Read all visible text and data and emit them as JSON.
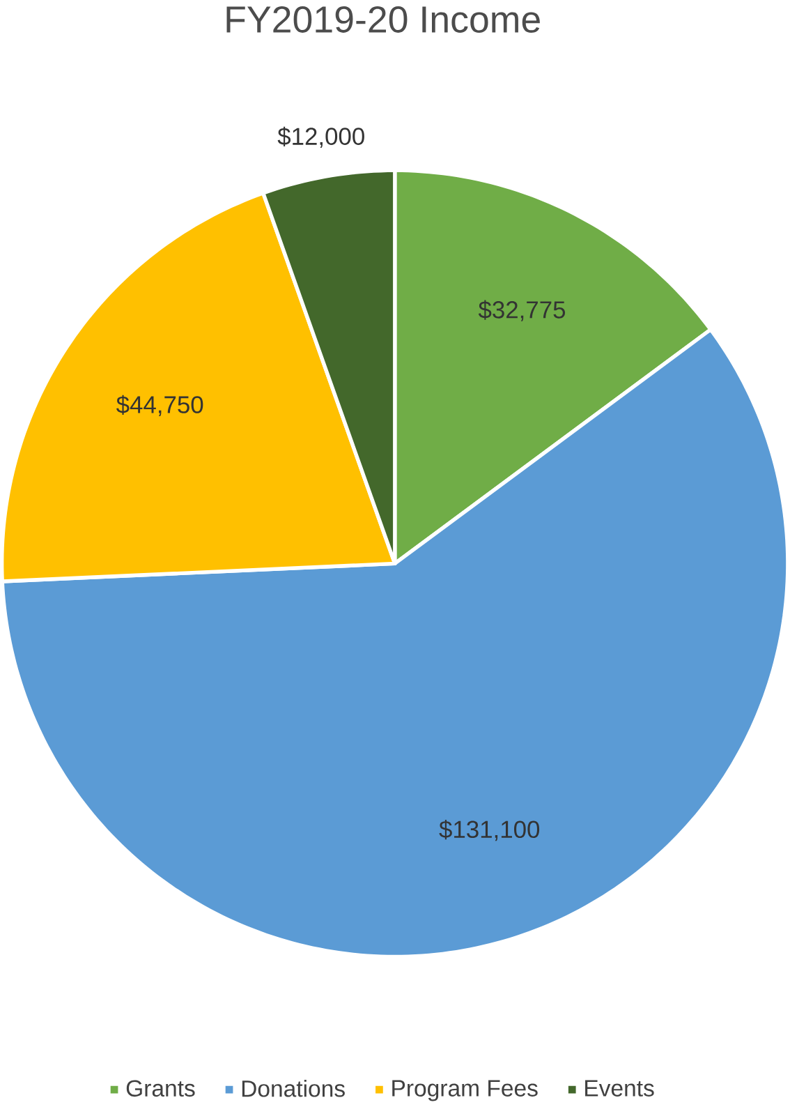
{
  "chart_data": {
    "type": "pie",
    "title": "FY2019-20 Income",
    "categories": [
      "Grants",
      "Donations",
      "Program Fees",
      "Events"
    ],
    "values": [
      32775,
      131100,
      44750,
      12000
    ],
    "value_labels": [
      "$32,775",
      "$131,100",
      "$44,750",
      "$12,000"
    ],
    "colors": [
      "#70ad47",
      "#5b9bd5",
      "#ffc000",
      "#43682b"
    ],
    "legend": "bottom"
  }
}
